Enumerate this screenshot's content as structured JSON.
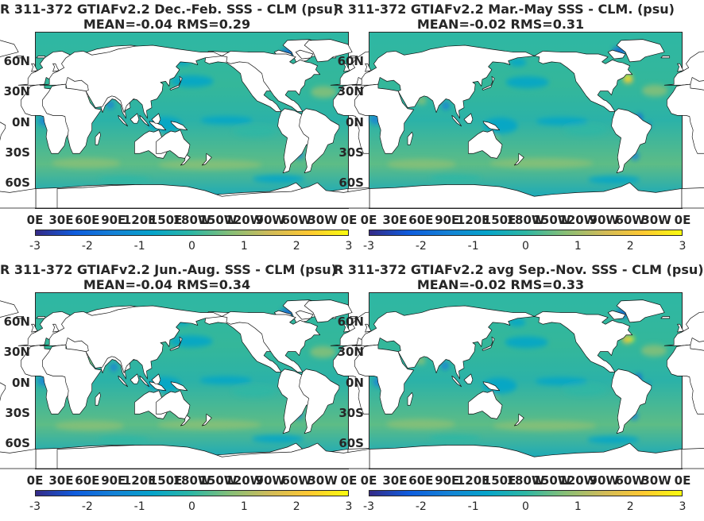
{
  "panels": [
    {
      "title": "R 311-372 GTIAFv2.2  Dec.-Feb. SSS - CLM (psu)",
      "stats": "MEAN=-0.04   RMS=0.29"
    },
    {
      "title": "R 311-372 GTIAFv2.2 Mar.-May SSS - CLM. (psu)",
      "stats": "MEAN=-0.02   RMS=0.31"
    },
    {
      "title": "R 311-372 GTIAFv2.2 Jun.-Aug. SSS - CLM (psu)",
      "stats": "MEAN=-0.04   RMS=0.34"
    },
    {
      "title": "R 311-372 GTIAFv2.2 avg Sep.-Nov. SSS - CLM (psu)",
      "stats": "MEAN=-0.02   RMS=0.33"
    }
  ],
  "lat_labels": [
    "60N",
    "30N",
    "0N",
    "30S",
    "60S"
  ],
  "lon_labels": [
    "0E",
    "30E",
    "60E",
    "90E",
    "120E",
    "150E",
    "180W",
    "150W",
    "120W",
    "90W",
    "60W",
    "30W",
    "0E"
  ],
  "colorbar": {
    "ticks": [
      "-3",
      "-2",
      "-1",
      "0",
      "1",
      "2",
      "3"
    ],
    "colormap": "parula",
    "stops": [
      "#352a87",
      "#0f5cdd",
      "#1481d6",
      "#06a4ca",
      "#2eb7a4",
      "#87bf77",
      "#d1bb59",
      "#fec832",
      "#f9fb0e"
    ]
  },
  "colors": {
    "ocean": "#34b79a",
    "land": "#ffffff",
    "coast": "#111111"
  }
}
